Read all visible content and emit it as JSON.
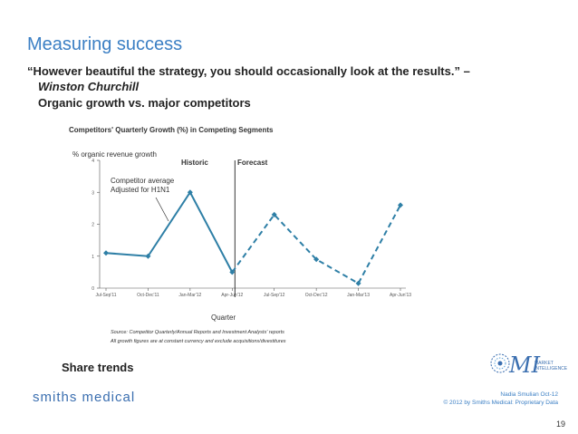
{
  "slide": {
    "title": "Measuring success",
    "quote": "“However beautiful the strategy, you should occasionally look at the results.” –",
    "quote_author": "Winston Churchill",
    "subtitle": "Organic growth vs. major competitors",
    "share_trends": "Share trends",
    "footer_logo": "smiths medical",
    "footer_author": "Nadia Smulian Oct-12",
    "footer_copyright": "© 2012 by Smiths Medical: Proprietary Data",
    "page_number": "19",
    "logo_mi_text": "MI",
    "logo_sub": [
      "MARKET",
      "INTELLIGENCE"
    ],
    "accent_color": "#3b7fc4",
    "series_color": "#2e7fa6"
  },
  "chart_data": {
    "type": "line",
    "title": "Competitors' Quarterly Growth (%) in Competing Segments",
    "ylabel": "% organic revenue growth",
    "xlabel": "Quarter",
    "ylim": [
      0,
      4
    ],
    "yticks": [
      "0",
      "1",
      "2",
      "3",
      "4"
    ],
    "categories": [
      "Jul-Sep'11",
      "Oct-Dec'11",
      "Jan-Mar'12",
      "Apr-Jun'12",
      "Jul-Sep'12",
      "Oct-Dec'12",
      "Jan-Mar'13",
      "Apr-Jun'13"
    ],
    "series": [
      {
        "values": [
          1.1,
          1.0,
          3.0,
          0.5,
          2.3,
          0.9,
          0.15,
          2.6
        ],
        "style": "solid-then-dashed",
        "forecast_start_index": 3
      }
    ],
    "regions": [
      "Historic",
      "Forecast"
    ],
    "annotation": [
      "Competitor average",
      "Adjusted for H1N1"
    ],
    "source": [
      "Source: Competitor Quarterly/Annual Reports and Investment Analysts' reports",
      "All growth figures are at constant currency and exclude acquisitions/divestitures"
    ],
    "grid": false
  }
}
